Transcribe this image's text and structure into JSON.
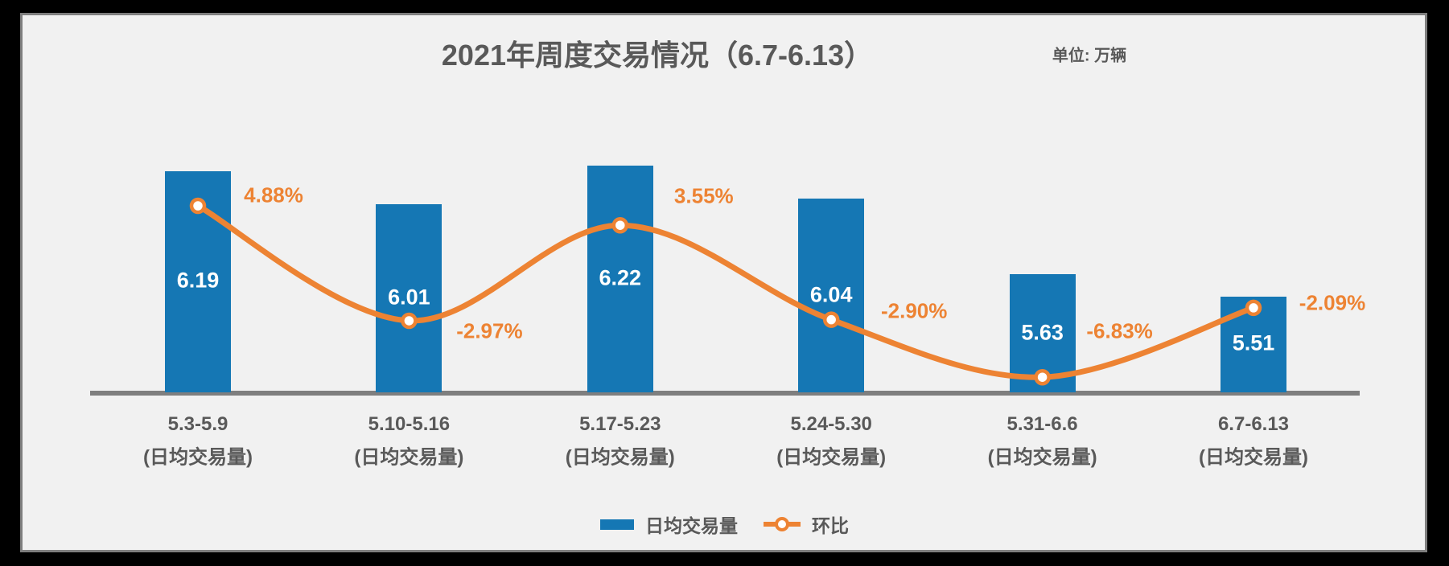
{
  "header": {
    "title": "2021年周度交易情况（6.7-6.13）",
    "unit_label": "单位: 万辆"
  },
  "legend": {
    "bar_label": "日均交易量",
    "line_label": "环比"
  },
  "colors": {
    "bar": "#1577B4",
    "line": "#ED8333",
    "text": "#595959",
    "value_label": "#FFFFFF",
    "background": "#F1F1F1",
    "axis": "#7F7F7F",
    "frame": "#000000"
  },
  "chart_data": {
    "type": "bar",
    "title": "2021年周度交易情况（6.7-6.13）",
    "unit": "万辆",
    "categories": [
      "5.3-5.9",
      "5.10-5.16",
      "5.17-5.23",
      "5.24-5.30",
      "5.31-6.6",
      "6.7-6.13"
    ],
    "category_sublabel": "(日均交易量)",
    "series": [
      {
        "name": "日均交易量",
        "type": "bar",
        "values": [
          6.19,
          6.01,
          6.22,
          6.04,
          5.63,
          5.51
        ],
        "data_labels": [
          "6.19",
          "6.01",
          "6.22",
          "6.04",
          "5.63",
          "5.51"
        ],
        "unit": "万辆"
      },
      {
        "name": "环比",
        "type": "line",
        "values": [
          4.88,
          -2.97,
          3.55,
          -2.9,
          -6.83,
          -2.09
        ],
        "data_labels": [
          "4.88%",
          "-2.97%",
          "3.55%",
          "-2.90%",
          "-6.83%",
          "-2.09%"
        ],
        "unit": "%"
      }
    ],
    "xlabel": "",
    "ylabel": "",
    "value_axis_visible": false,
    "gridlines": false,
    "bar_axis_implied_min": 5.0,
    "legend_position": "bottom"
  }
}
